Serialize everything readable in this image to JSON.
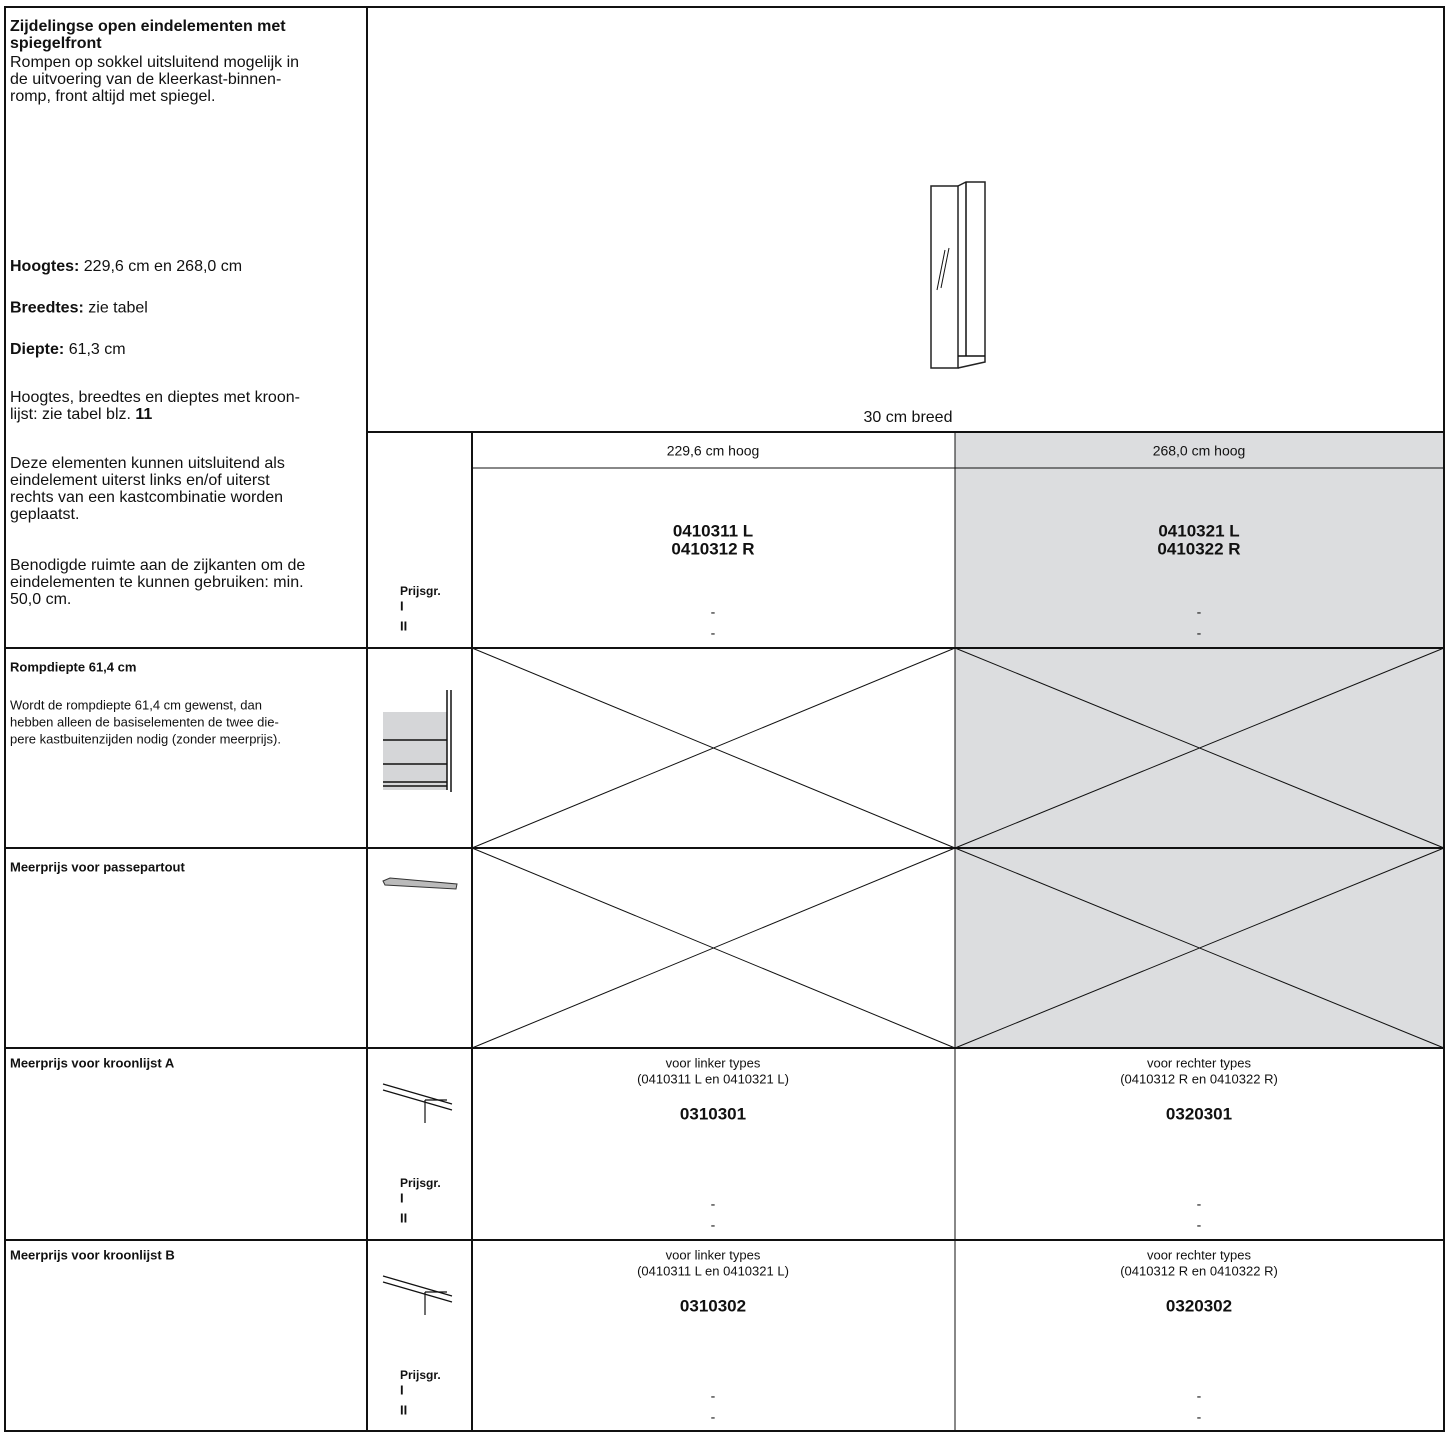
{
  "intro": {
    "title_lines": [
      "Zijdelingse open eindelementen met",
      "spiegelfront"
    ],
    "lines": [
      "Rompen op sokkel uitsluitend mogelijk in",
      "de uitvoering van de kleerkast-binnen-",
      "romp, front altijd met spiegel."
    ]
  },
  "specs": [
    {
      "label": "Hoogtes:",
      "value": "229,6 cm en 268,0 cm"
    },
    {
      "label": "Breedtes:",
      "value": "zie tabel"
    },
    {
      "label": "Diepte:",
      "value": "61,3 cm"
    }
  ],
  "note": {
    "lines": [
      "Hoogtes, breedtes en dieptes met kroon-",
      "lijst: zie tabel blz."
    ],
    "page": "11"
  },
  "placement": {
    "lines": [
      "Deze elementen kunnen uitsluitend als",
      "eindelement uiterst links en/of uiterst",
      "rechts van een kastcombinatie worden",
      "geplaatst."
    ]
  },
  "space": {
    "lines": [
      "Benodigde ruimte aan de zijkanten om de",
      "eindelementen te kunnen gebruiken: min.",
      "50,0 cm."
    ]
  },
  "image_caption": "30 cm breed",
  "price_label": "Prijsgr.",
  "price_groups": [
    "I",
    "II"
  ],
  "columns": [
    "229,6 cm hoog",
    "268,0 cm hoog"
  ],
  "codes": [
    [
      "0410311 L",
      "0410312 R"
    ],
    [
      "0410321 L",
      "0410322 R"
    ]
  ],
  "prices": [
    [
      "-",
      "-"
    ],
    [
      "-",
      "-"
    ]
  ],
  "options": [
    {
      "title": "Rompdiepte 61,4 cm",
      "lines": [
        "Wordt de rompdiepte 61,4 cm gewenst, dan",
        "hebben alleen de basiselementen de twee die-",
        "pere kastbuitenzijden nodig (zonder meerprijs)."
      ]
    },
    {
      "title": "Meerprijs voor passepartout"
    },
    {
      "title": "Meerprijs voor kroonlijst A",
      "columns": [
        {
          "note_lines": [
            "voor linker types",
            "(0410311 L en 0410321 L)"
          ],
          "code": "0310301",
          "prices": [
            "-",
            "-"
          ]
        },
        {
          "note_lines": [
            "voor rechter types",
            "(0410312 R en 0410322 R)"
          ],
          "code": "0320301",
          "prices": [
            "-",
            "-"
          ]
        }
      ]
    },
    {
      "title": "Meerprijs voor kroonlijst B",
      "columns": [
        {
          "note_lines": [
            "voor linker types",
            "(0410311 L en 0410321 L)"
          ],
          "code": "0310302",
          "prices": [
            "-",
            "-"
          ]
        },
        {
          "note_lines": [
            "voor rechter types",
            "(0410312 R en 0410322 R)"
          ],
          "code": "0320302",
          "prices": [
            "-",
            "-"
          ]
        }
      ]
    }
  ]
}
